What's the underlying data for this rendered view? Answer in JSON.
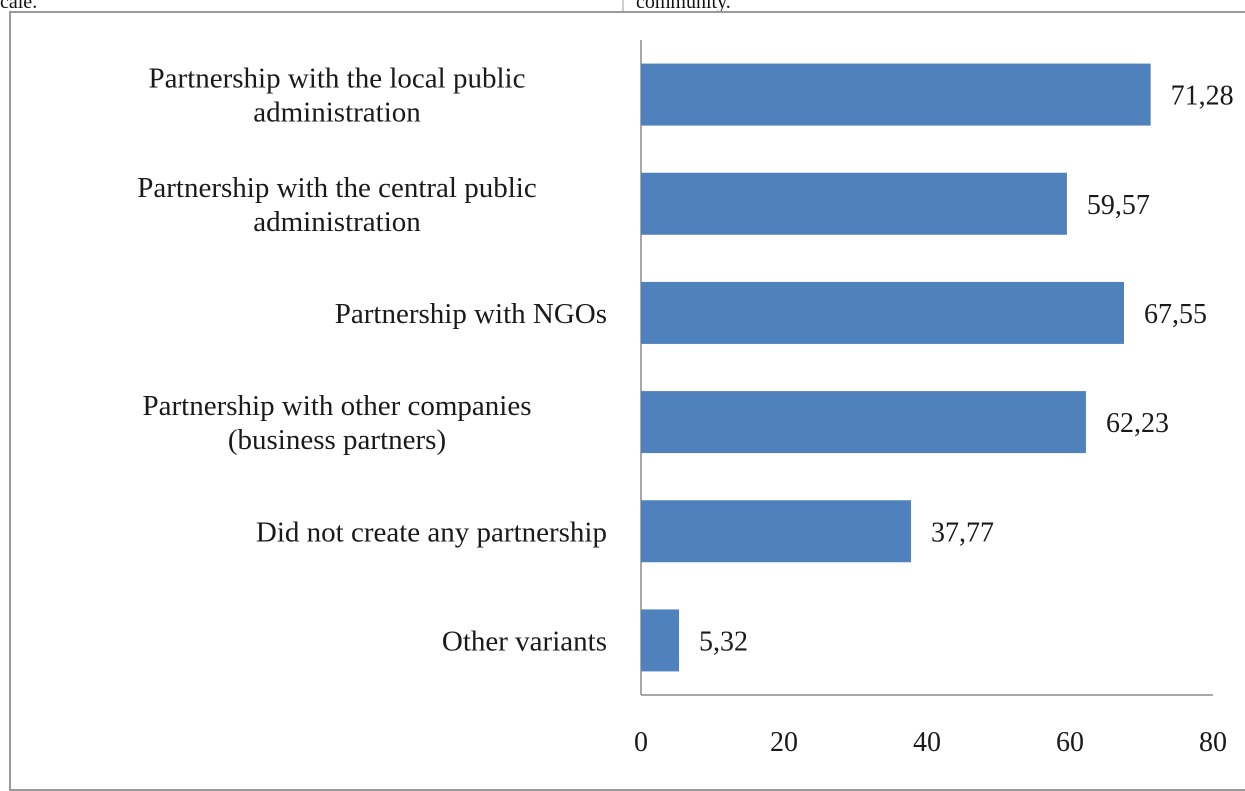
{
  "page": {
    "top_left_fragment": "cale.",
    "top_right_fragment": "community."
  },
  "chart_data": {
    "type": "bar",
    "orientation": "horizontal",
    "title": "",
    "xlabel": "",
    "ylabel": "",
    "categories": [
      "Partnership with the local public administration",
      "Partnership with the central public administration",
      "Partnership with NGOs",
      "Partnership with other companies (business partners)",
      "Did not create any partnership",
      "Other variants"
    ],
    "category_label_lines": [
      [
        "Partnership with the local public",
        "administration"
      ],
      [
        "Partnership with the central public",
        "administration"
      ],
      [
        "Partnership with NGOs"
      ],
      [
        "Partnership with other companies",
        "(business partners)"
      ],
      [
        "Did not create any partnership"
      ],
      [
        "Other variants"
      ]
    ],
    "values": [
      71.28,
      59.57,
      67.55,
      62.23,
      37.77,
      5.32
    ],
    "value_labels": [
      "71,28",
      "59,57",
      "67,55",
      "62,23",
      "37,77",
      "5,32"
    ],
    "xlim": [
      0,
      80
    ],
    "xticks": [
      0,
      20,
      40,
      60,
      80
    ],
    "xtick_labels": [
      "0",
      "20",
      "40",
      "60",
      "80"
    ],
    "grid": false,
    "legend": "none",
    "bar_color": "#4f81bd"
  }
}
